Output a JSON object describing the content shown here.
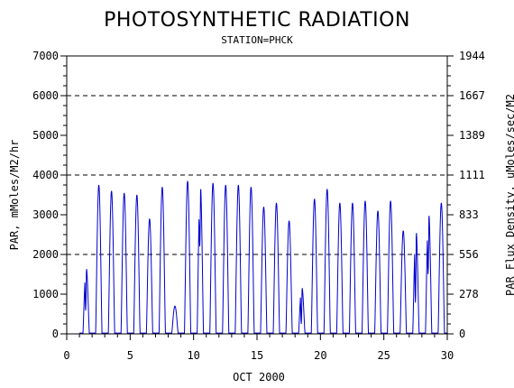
{
  "chart_data": {
    "type": "line",
    "title": "PHOTOSYNTHETIC RADIATION",
    "subtitle": "STATION=PHCK",
    "xlabel": "OCT 2000",
    "ylabel": "PAR, mMoles/M2/hr",
    "y2label": "PAR Flux Density, uMoles/sec/M2",
    "xlim": [
      0,
      30
    ],
    "ylim": [
      0,
      7000
    ],
    "x_ticks": [
      "0",
      "5",
      "10",
      "15",
      "20",
      "25",
      "30"
    ],
    "y_ticks": [
      "0",
      "1000",
      "2000",
      "3000",
      "4000",
      "5000",
      "6000",
      "7000"
    ],
    "y2_ticks": [
      "0",
      "278",
      "556",
      "833",
      "1111",
      "1389",
      "1667",
      "1944"
    ],
    "reference_lines": [
      2000,
      4000,
      6000
    ],
    "line_color": "#0000cc",
    "daily_peaks": [
      {
        "day": 1,
        "value": 1700,
        "dip": 0.35
      },
      {
        "day": 2,
        "value": 3750
      },
      {
        "day": 3,
        "value": 3600
      },
      {
        "day": 4,
        "value": 3550
      },
      {
        "day": 5,
        "value": 3500
      },
      {
        "day": 6,
        "value": 2900
      },
      {
        "day": 7,
        "value": 3700
      },
      {
        "day": 8,
        "value": 700
      },
      {
        "day": 9,
        "value": 3850
      },
      {
        "day": 10,
        "value": 3800,
        "dip": 0.6
      },
      {
        "day": 11,
        "value": 3800
      },
      {
        "day": 12,
        "value": 3750
      },
      {
        "day": 13,
        "value": 3750
      },
      {
        "day": 14,
        "value": 3700
      },
      {
        "day": 15,
        "value": 3200
      },
      {
        "day": 16,
        "value": 3300
      },
      {
        "day": 17,
        "value": 2850
      },
      {
        "day": 18,
        "value": 1200,
        "dip": 0.2
      },
      {
        "day": 19,
        "value": 3400
      },
      {
        "day": 20,
        "value": 3650
      },
      {
        "day": 21,
        "value": 3300
      },
      {
        "day": 22,
        "value": 3300
      },
      {
        "day": 23,
        "value": 3350
      },
      {
        "day": 24,
        "value": 3100
      },
      {
        "day": 25,
        "value": 3350
      },
      {
        "day": 26,
        "value": 2600
      },
      {
        "day": 27,
        "value": 2650,
        "dip": 0.3
      },
      {
        "day": 28,
        "value": 3100,
        "dip": 0.5
      },
      {
        "day": 29,
        "value": 3300
      }
    ]
  }
}
